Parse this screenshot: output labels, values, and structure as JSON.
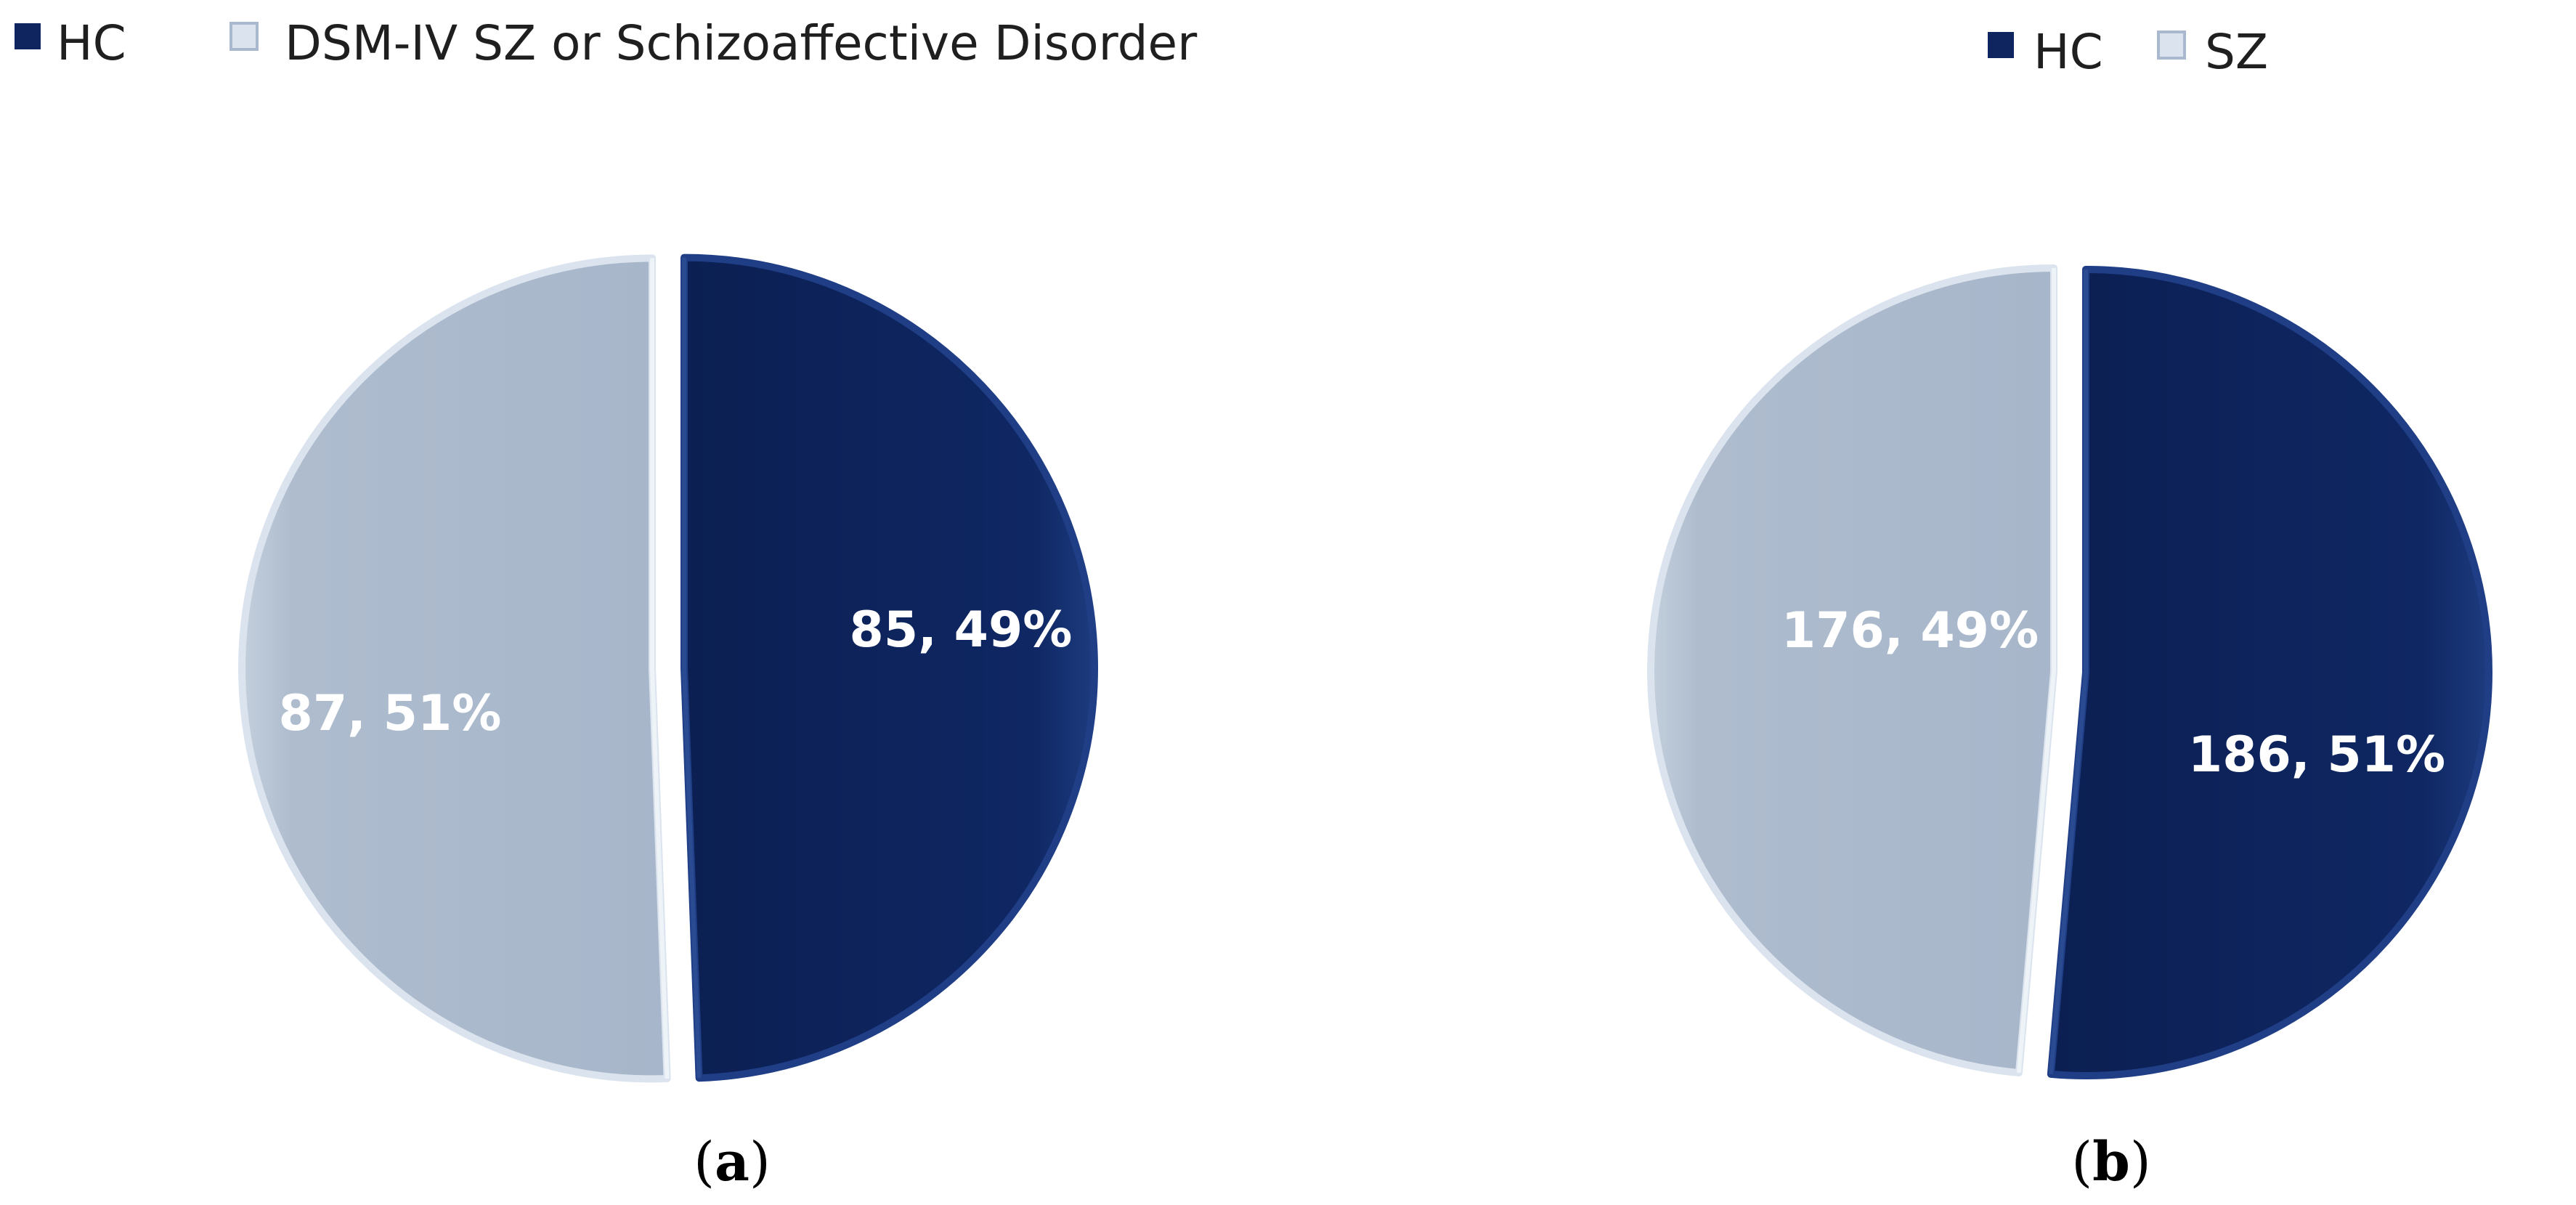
{
  "colors": {
    "hc": "#0e2560",
    "hc_edge": "#1f3e86",
    "sz": "#a9b8cc",
    "sz_edge": "#dbe4ee",
    "edge_shadow": "#16306a",
    "background": "#ffffff"
  },
  "chart_data": [
    {
      "type": "pie",
      "panel": "a",
      "panel_label": {
        "open": "(",
        "letter": "a",
        "close": ")"
      },
      "legend": [
        "HC",
        "DSM-IV SZ or Schizoaffective Disorder"
      ],
      "legend_placement": "top-left",
      "series": [
        {
          "name": "HC",
          "value": 85,
          "percent": 49,
          "label": "85, 49%"
        },
        {
          "name": "DSM-IV SZ or Schizoaffective Disorder",
          "value": 87,
          "percent": 51,
          "label": "87, 51%"
        }
      ],
      "start": "12 o'clock, clockwise",
      "exploded": true
    },
    {
      "type": "pie",
      "panel": "b",
      "panel_label": {
        "open": "(",
        "letter": "b",
        "close": ")"
      },
      "legend": [
        "HC",
        "SZ"
      ],
      "legend_placement": "top-center",
      "series": [
        {
          "name": "HC",
          "value": 186,
          "percent": 51,
          "label": "186, 51%"
        },
        {
          "name": "SZ",
          "value": 176,
          "percent": 49,
          "label": "176, 49%"
        }
      ],
      "start": "12 o'clock, clockwise",
      "exploded": true
    }
  ]
}
